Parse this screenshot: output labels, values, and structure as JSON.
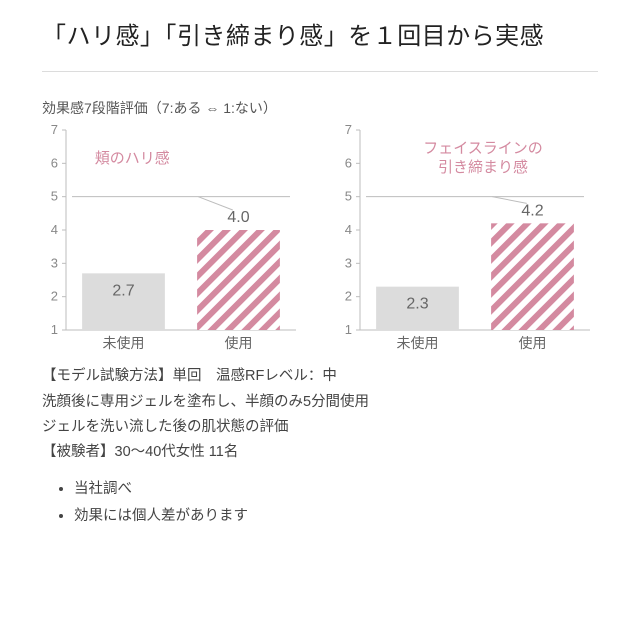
{
  "heading": "「ハリ感」「引き締まり感」を１回目から実感",
  "subtitle": "効果感7段階評価（7:ある ⇔ 1:ない）",
  "chart_common": {
    "type": "bar",
    "ylim": [
      1,
      7
    ],
    "yticks": [
      1,
      2,
      3,
      4,
      5,
      6,
      7
    ],
    "tick_fontsize": 13,
    "tick_color": "#888888",
    "axis_color": "#bdbdbd",
    "grid_color": "#e6e6e6",
    "background_color": "#ffffff",
    "bar_width_ratio": 0.72,
    "xcategories": [
      "未使用",
      "使用"
    ],
    "xcat_fontsize": 14,
    "xcat_color": "#666666",
    "value_label_fontsize": 16,
    "value_label_color": "#666666",
    "annot_color": "#d48aa0",
    "solid_bar_color": "#dcdcdc",
    "hatched_bar_stripe": "#d48aa0",
    "hatched_bar_bg": "#ffffff"
  },
  "charts": [
    {
      "annot": "頬のハリ感",
      "values": [
        2.7,
        4.0
      ],
      "value_labels": [
        "2.7",
        "4.0"
      ]
    },
    {
      "annot": "フェイスラインの\n引き締まり感",
      "values": [
        2.3,
        4.2
      ],
      "value_labels": [
        "2.3",
        "4.2"
      ]
    }
  ],
  "methods": [
    "【モデル試験方法】単回　温感RFレベル：中",
    "洗顔後に専用ジェルを塗布し、半顔のみ5分間使用",
    "ジェルを洗い流した後の肌状態の評価",
    "【被験者】30〜40代女性 11名"
  ],
  "bullets": [
    "当社調べ",
    "効果には個人差があります"
  ]
}
